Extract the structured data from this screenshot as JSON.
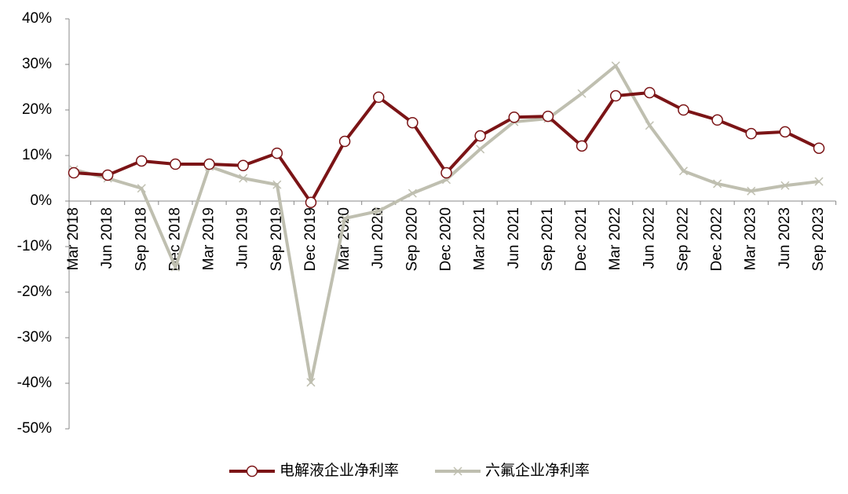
{
  "chart_data": {
    "type": "line",
    "categories": [
      "Mar 2018",
      "Jun 2018",
      "Sep 2018",
      "Dec 2018",
      "Mar 2019",
      "Jun 2019",
      "Sep 2019",
      "Dec 2019",
      "Mar 2020",
      "Jun 2020",
      "Sep 2020",
      "Dec 2020",
      "Mar 2021",
      "Jun 2021",
      "Sep 2021",
      "Dec 2021",
      "Mar 2022",
      "Jun 2022",
      "Sep 2022",
      "Dec 2022",
      "Mar 2023",
      "Jun 2023",
      "Sep 2023"
    ],
    "series": [
      {
        "name": "电解液企业净利率",
        "color": "#7b1416",
        "marker": "circle",
        "values": [
          6.2,
          5.7,
          8.8,
          8.1,
          8.1,
          7.8,
          10.5,
          -0.3,
          13.1,
          22.8,
          17.2,
          6.2,
          14.3,
          18.4,
          18.6,
          12.1,
          23.1,
          23.8,
          20.0,
          17.8,
          14.8,
          15.2,
          11.6
        ]
      },
      {
        "name": "六氟企业净利率",
        "color": "#bfbfb0",
        "marker": "x",
        "values": [
          6.9,
          5.0,
          2.8,
          -14.5,
          7.6,
          5.0,
          3.6,
          -39.8,
          -3.8,
          -2.2,
          1.7,
          4.7,
          11.4,
          17.4,
          18.1,
          23.6,
          29.7,
          16.6,
          6.6,
          3.8,
          2.2,
          3.4,
          4.3
        ]
      }
    ],
    "ylim": [
      -50,
      40
    ],
    "yticks": [
      {
        "value": -50,
        "label": "-50%"
      },
      {
        "value": -40,
        "label": "-40%"
      },
      {
        "value": -30,
        "label": "-30%"
      },
      {
        "value": -20,
        "label": "-20%"
      },
      {
        "value": -10,
        "label": "-10%"
      },
      {
        "value": 0,
        "label": "0%"
      },
      {
        "value": 10,
        "label": "10%"
      },
      {
        "value": 20,
        "label": "20%"
      },
      {
        "value": 30,
        "label": "30%"
      },
      {
        "value": 40,
        "label": "40%"
      }
    ],
    "grid": false
  }
}
